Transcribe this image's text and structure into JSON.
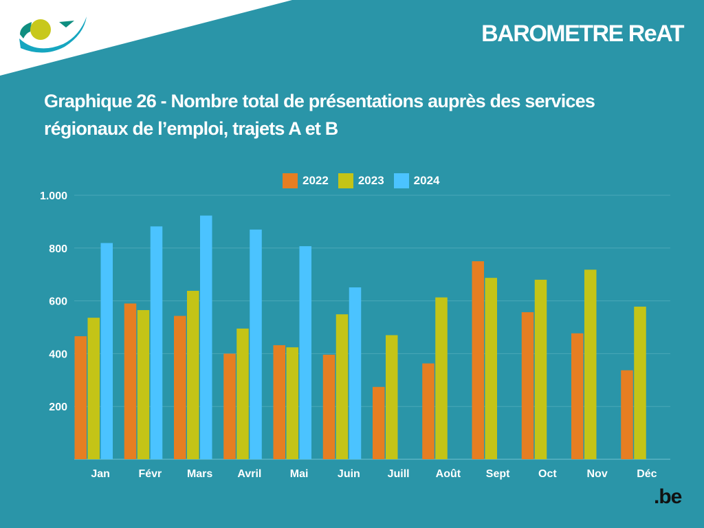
{
  "header": {
    "brand": "BAROMETRE ReAT",
    "be_logo": ".be"
  },
  "colors": {
    "background": "#2a95a8",
    "2022": "#e67e22",
    "2023": "#c4c417",
    "2024": "#4bc3ff",
    "gridline": "#4aa8b8"
  },
  "chart_data": {
    "type": "bar",
    "title": "Graphique 26 - Nombre total de présentations auprès des services régionaux de l’emploi, trajets A et B",
    "xlabel": "",
    "ylabel": "",
    "ylim": [
      0,
      1000
    ],
    "yticks": [
      200,
      400,
      600,
      800,
      1000
    ],
    "ytick_labels": [
      "200",
      "400",
      "600",
      "800",
      "1.000"
    ],
    "grid": true,
    "legend_position": "top-center",
    "categories": [
      "Jan",
      "Févr",
      "Mars",
      "Avril",
      "Mai",
      "Juin",
      "Juill",
      "Août",
      "Sept",
      "Oct",
      "Nov",
      "Déc"
    ],
    "series": [
      {
        "name": "2022",
        "color": "#e67e22",
        "values": [
          466,
          590,
          543,
          400,
          432,
          396,
          274,
          363,
          750,
          557,
          477,
          337
        ]
      },
      {
        "name": "2023",
        "color": "#c4c417",
        "values": [
          536,
          565,
          638,
          495,
          424,
          549,
          470,
          613,
          687,
          680,
          718,
          578
        ]
      },
      {
        "name": "2024",
        "color": "#4bc3ff",
        "values": [
          819,
          882,
          923,
          870,
          807,
          651,
          null,
          null,
          null,
          null,
          null,
          null
        ]
      }
    ]
  }
}
